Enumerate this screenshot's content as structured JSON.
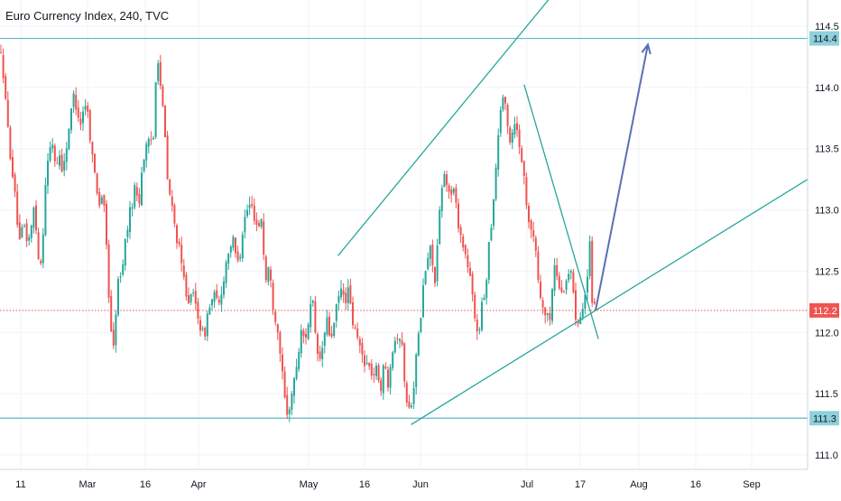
{
  "chart_data": {
    "type": "candlestick",
    "title": "Euro Currency Index, 240, TVC",
    "colors": {
      "up": "#26a69a",
      "down": "#ef5350",
      "level_line": "#5fb7c7",
      "trend_line": "#26a69a",
      "projection_arrow": "#5b6fb5",
      "current_price": "#ef5350",
      "axis_text": "#131722",
      "grid": "#f0f3fa"
    },
    "y_axis": {
      "range": [
        110.9,
        114.55
      ],
      "ticks": [
        "111.0",
        "111.5",
        "112.0",
        "112.5",
        "113.0",
        "113.5",
        "114.0",
        "114.5"
      ]
    },
    "x_axis": {
      "ticks": [
        "11",
        "Mar",
        "16",
        "Apr",
        "May",
        "16",
        "Jun",
        "Jul",
        "17",
        "Aug",
        "16",
        "Sep"
      ]
    },
    "levels": [
      {
        "label": "114.4",
        "value": 114.4
      },
      {
        "label": "111.3",
        "value": 111.3
      }
    ],
    "current_price": {
      "label": "112.2",
      "value": 112.18
    },
    "price_path": [
      [
        0,
        114.3
      ],
      [
        4,
        114.1
      ],
      [
        7,
        113.8
      ],
      [
        10,
        113.55
      ],
      [
        14,
        113.3
      ],
      [
        18,
        113.0
      ],
      [
        22,
        112.7
      ],
      [
        26,
        112.9
      ],
      [
        30,
        112.75
      ],
      [
        34,
        112.8
      ],
      [
        38,
        113.05
      ],
      [
        42,
        112.65
      ],
      [
        46,
        112.55
      ],
      [
        50,
        113.2
      ],
      [
        54,
        113.45
      ],
      [
        58,
        113.55
      ],
      [
        62,
        113.35
      ],
      [
        66,
        113.45
      ],
      [
        70,
        113.3
      ],
      [
        74,
        113.55
      ],
      [
        78,
        113.75
      ],
      [
        82,
        113.95
      ],
      [
        86,
        113.8
      ],
      [
        90,
        113.7
      ],
      [
        94,
        113.9
      ],
      [
        98,
        113.75
      ],
      [
        102,
        113.45
      ],
      [
        106,
        113.25
      ],
      [
        110,
        113.05
      ],
      [
        114,
        113.15
      ],
      [
        118,
        112.7
      ],
      [
        122,
        112.1
      ],
      [
        126,
        111.85
      ],
      [
        130,
        112.4
      ],
      [
        134,
        112.45
      ],
      [
        138,
        112.7
      ],
      [
        142,
        112.9
      ],
      [
        146,
        113.05
      ],
      [
        150,
        113.2
      ],
      [
        154,
        113.05
      ],
      [
        158,
        113.4
      ],
      [
        162,
        113.5
      ],
      [
        166,
        113.55
      ],
      [
        170,
        113.6
      ],
      [
        174,
        114.35
      ],
      [
        178,
        114.0
      ],
      [
        182,
        113.7
      ],
      [
        186,
        113.2
      ],
      [
        190,
        113.05
      ],
      [
        194,
        112.85
      ],
      [
        198,
        112.7
      ],
      [
        202,
        112.5
      ],
      [
        206,
        112.35
      ],
      [
        210,
        112.25
      ],
      [
        214,
        112.3
      ],
      [
        218,
        112.2
      ],
      [
        222,
        112.05
      ],
      [
        226,
        111.95
      ],
      [
        230,
        112.15
      ],
      [
        234,
        112.25
      ],
      [
        238,
        112.3
      ],
      [
        242,
        112.2
      ],
      [
        246,
        112.35
      ],
      [
        250,
        112.55
      ],
      [
        254,
        112.7
      ],
      [
        258,
        112.75
      ],
      [
        262,
        112.6
      ],
      [
        266,
        112.65
      ],
      [
        270,
        112.9
      ],
      [
        274,
        113.0
      ],
      [
        278,
        113.05
      ],
      [
        282,
        112.95
      ],
      [
        286,
        112.85
      ],
      [
        290,
        112.95
      ],
      [
        294,
        112.4
      ],
      [
        298,
        112.55
      ],
      [
        302,
        112.25
      ],
      [
        306,
        112.1
      ],
      [
        310,
        111.9
      ],
      [
        314,
        111.55
      ],
      [
        318,
        111.3
      ],
      [
        322,
        111.45
      ],
      [
        326,
        111.6
      ],
      [
        330,
        111.8
      ],
      [
        334,
        112.0
      ],
      [
        338,
        111.95
      ],
      [
        342,
        112.1
      ],
      [
        346,
        112.3
      ],
      [
        350,
        111.9
      ],
      [
        354,
        111.75
      ],
      [
        358,
        111.9
      ],
      [
        362,
        112.1
      ],
      [
        366,
        111.95
      ],
      [
        370,
        112.05
      ],
      [
        374,
        112.25
      ],
      [
        378,
        112.35
      ],
      [
        382,
        112.25
      ],
      [
        386,
        112.35
      ],
      [
        390,
        112.1
      ],
      [
        394,
        112.0
      ],
      [
        398,
        111.9
      ],
      [
        402,
        111.8
      ],
      [
        406,
        111.75
      ],
      [
        410,
        111.7
      ],
      [
        414,
        111.65
      ],
      [
        418,
        111.7
      ],
      [
        422,
        111.55
      ],
      [
        426,
        111.75
      ],
      [
        430,
        111.6
      ],
      [
        434,
        111.85
      ],
      [
        438,
        111.95
      ],
      [
        442,
        112.0
      ],
      [
        446,
        111.85
      ],
      [
        450,
        111.45
      ],
      [
        454,
        111.35
      ],
      [
        458,
        111.55
      ],
      [
        462,
        111.85
      ],
      [
        466,
        112.1
      ],
      [
        470,
        112.45
      ],
      [
        474,
        112.6
      ],
      [
        478,
        112.7
      ],
      [
        482,
        112.4
      ],
      [
        486,
        112.85
      ],
      [
        490,
        113.2
      ],
      [
        494,
        113.3
      ],
      [
        498,
        113.1
      ],
      [
        502,
        113.2
      ],
      [
        506,
        113.0
      ],
      [
        510,
        112.8
      ],
      [
        514,
        112.7
      ],
      [
        518,
        112.55
      ],
      [
        522,
        112.4
      ],
      [
        526,
        112.1
      ],
      [
        530,
        112.0
      ],
      [
        534,
        112.2
      ],
      [
        538,
        112.35
      ],
      [
        542,
        112.75
      ],
      [
        546,
        113.0
      ],
      [
        550,
        113.4
      ],
      [
        554,
        113.8
      ],
      [
        558,
        113.95
      ],
      [
        562,
        113.7
      ],
      [
        566,
        113.55
      ],
      [
        570,
        113.75
      ],
      [
        574,
        113.6
      ],
      [
        578,
        113.45
      ],
      [
        582,
        113.15
      ],
      [
        586,
        112.95
      ],
      [
        590,
        112.8
      ],
      [
        594,
        112.65
      ],
      [
        598,
        112.3
      ],
      [
        602,
        112.2
      ],
      [
        606,
        112.1
      ],
      [
        610,
        112.15
      ],
      [
        614,
        112.55
      ],
      [
        618,
        112.45
      ],
      [
        622,
        112.3
      ],
      [
        626,
        112.4
      ],
      [
        630,
        112.5
      ],
      [
        634,
        112.45
      ],
      [
        638,
        112.15
      ],
      [
        642,
        112.1
      ],
      [
        646,
        112.25
      ],
      [
        650,
        112.35
      ],
      [
        654,
        112.75
      ],
      [
        656,
        112.2
      ],
      [
        660,
        112.18
      ]
    ],
    "annotations": {
      "channel_upper": [
        [
          375,
          112.63
        ],
        [
          634,
          114.95
        ]
      ],
      "channel_lower": [
        [
          456,
          111.25
        ],
        [
          895,
          113.25
        ]
      ],
      "falling_wedge_line": [
        [
          581,
          114.02
        ],
        [
          663,
          111.95
        ]
      ],
      "projection_arrow": [
        [
          660,
          112.18
        ],
        [
          718,
          114.35
        ]
      ]
    }
  }
}
